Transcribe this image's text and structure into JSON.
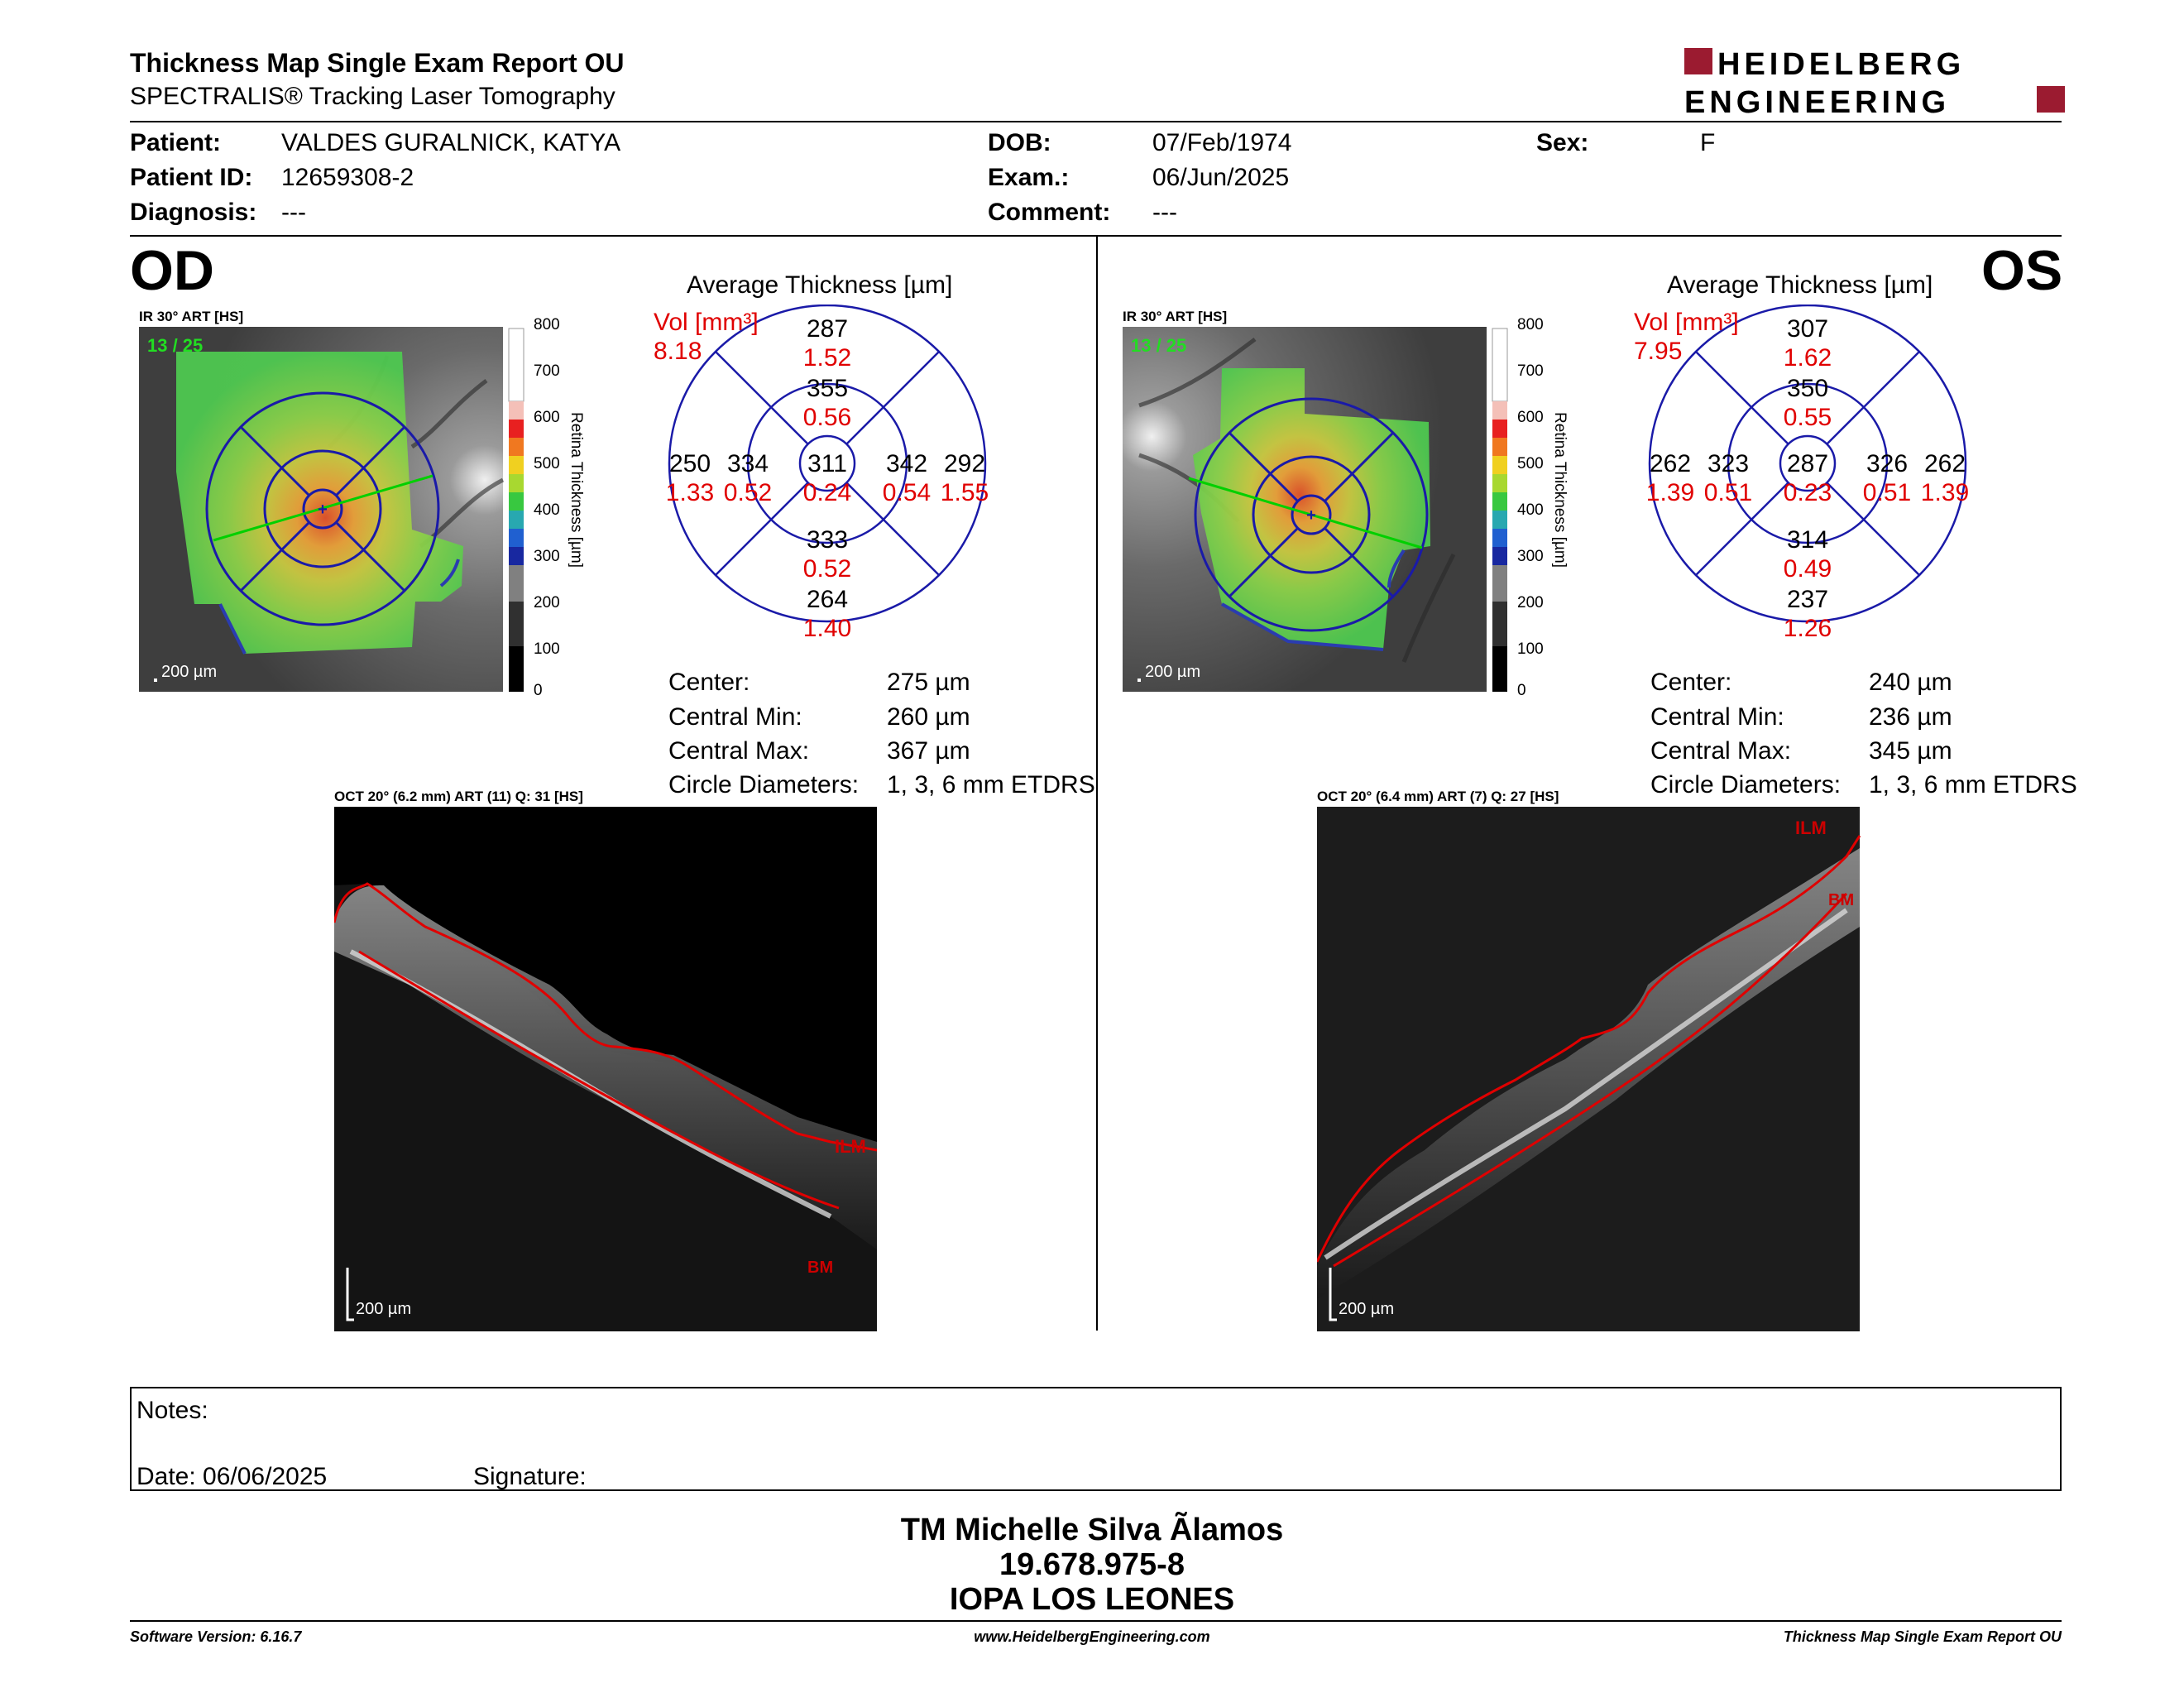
{
  "header": {
    "title": "Thickness Map Single Exam Report OU",
    "subtitle": "SPECTRALIS® Tracking Laser Tomography",
    "logo_line1": "HEIDELBERG",
    "logo_line2": "ENGINEERING"
  },
  "patient": {
    "patient_label": "Patient:",
    "patient_value": "VALDES GURALNICK, KATYA",
    "id_label": "Patient ID:",
    "id_value": "12659308-2",
    "diagnosis_label": "Diagnosis:",
    "diagnosis_value": "---",
    "dob_label": "DOB:",
    "dob_value": "07/Feb/1974",
    "exam_label": "Exam.:",
    "exam_value": "06/Jun/2025",
    "comment_label": "Comment:",
    "comment_value": "---",
    "sex_label": "Sex:",
    "sex_value": "F"
  },
  "od": {
    "eye": "OD",
    "ir_caption": "IR 30° ART [HS]",
    "frame": "13 / 25",
    "scale": "200 µm",
    "colorbar_ticks": [
      "800",
      "700",
      "600",
      "500",
      "400",
      "300",
      "200",
      "100",
      "0"
    ],
    "colorbar_label": "Retina Thickness [µm]",
    "avg_title": "Average Thickness [µm]",
    "vol_label": "Vol [mm³]",
    "vol_value": "8.18",
    "sectors": {
      "center": {
        "t": "311",
        "v": "0.24"
      },
      "inner_sup": {
        "t": "355",
        "v": "0.56"
      },
      "inner_inf": {
        "t": "333",
        "v": "0.52"
      },
      "inner_left": {
        "t": "334",
        "v": "0.52"
      },
      "inner_right": {
        "t": "342",
        "v": "0.54"
      },
      "outer_sup": {
        "t": "287",
        "v": "1.52"
      },
      "outer_inf": {
        "t": "264",
        "v": "1.40"
      },
      "outer_left": {
        "t": "250",
        "v": "1.33"
      },
      "outer_right": {
        "t": "292",
        "v": "1.55"
      }
    },
    "stats": {
      "center_label": "Center:",
      "center_value": "275 µm",
      "min_label": "Central Min:",
      "min_value": "260 µm",
      "max_label": "Central Max:",
      "max_value": "367 µm",
      "diam_label": "Circle Diameters:",
      "diam_value": "1, 3, 6 mm ETDRS"
    },
    "oct_caption": "OCT 20° (6.2 mm) ART (11) Q: 31 [HS]",
    "oct_scale": "200 µm",
    "ilm": "ILM",
    "bm": "BM"
  },
  "os": {
    "eye": "OS",
    "ir_caption": "IR 30° ART [HS]",
    "frame": "13 / 25",
    "scale": "200 µm",
    "colorbar_ticks": [
      "800",
      "700",
      "600",
      "500",
      "400",
      "300",
      "200",
      "100",
      "0"
    ],
    "colorbar_label": "Retina Thickness [µm]",
    "avg_title": "Average Thickness [µm]",
    "vol_label": "Vol [mm³]",
    "vol_value": "7.95",
    "sectors": {
      "center": {
        "t": "287",
        "v": "0.23"
      },
      "inner_sup": {
        "t": "350",
        "v": "0.55"
      },
      "inner_inf": {
        "t": "314",
        "v": "0.49"
      },
      "inner_left": {
        "t": "323",
        "v": "0.51"
      },
      "inner_right": {
        "t": "326",
        "v": "0.51"
      },
      "outer_sup": {
        "t": "307",
        "v": "1.62"
      },
      "outer_inf": {
        "t": "237",
        "v": "1.26"
      },
      "outer_left": {
        "t": "262",
        "v": "1.39"
      },
      "outer_right": {
        "t": "262",
        "v": "1.39"
      }
    },
    "stats": {
      "center_label": "Center:",
      "center_value": "240 µm",
      "min_label": "Central Min:",
      "min_value": "236 µm",
      "max_label": "Central Max:",
      "max_value": "345 µm",
      "diam_label": "Circle Diameters:",
      "diam_value": "1, 3, 6 mm ETDRS"
    },
    "oct_caption": "OCT 20° (6.4 mm) ART (7) Q: 27 [HS]",
    "oct_scale": "200 µm",
    "ilm": "ILM",
    "bm": "BM"
  },
  "notes": {
    "notes_label": "Notes:",
    "date_label": "Date: 06/06/2025",
    "signature_label": "Signature:"
  },
  "footer": {
    "name": "TM Michelle Silva Ãlamos",
    "id": "19.678.975-8",
    "org": "IOPA LOS LEONES",
    "software": "Software Version: 6.16.7",
    "website": "www.HeidelbergEngineering.com",
    "report": "Thickness Map Single Exam Report OU"
  },
  "colors": {
    "grid_blue": "#1a1aa8",
    "value_red": "#e00000",
    "brand_red": "#9b1b30",
    "scan_line_green": "#00d000"
  }
}
